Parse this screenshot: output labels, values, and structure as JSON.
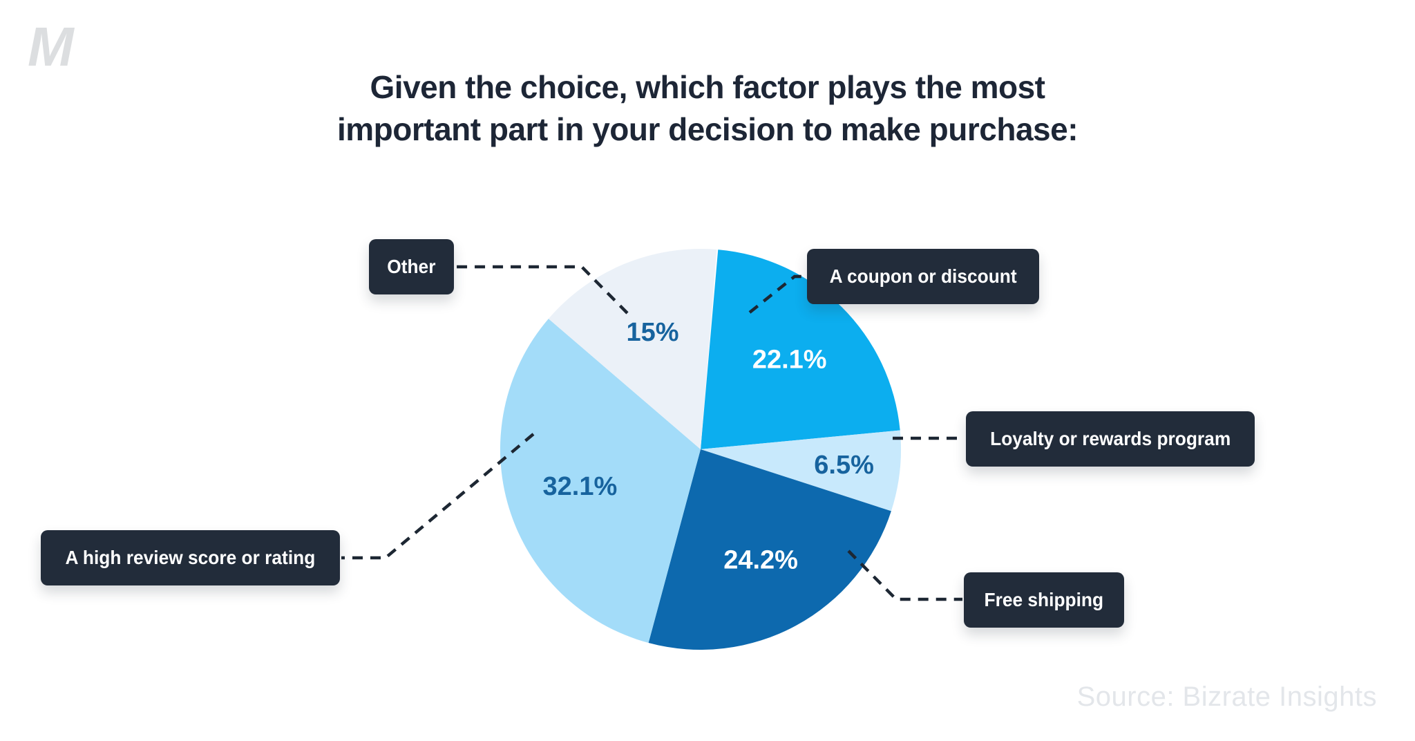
{
  "page": {
    "logo": "M",
    "title_line1": "Given the choice, which factor plays the most",
    "title_line2": "important part in your decision to make purchase:",
    "source": "Source: Bizrate Insights"
  },
  "chart_data": {
    "type": "pie",
    "title": "Given the choice, which factor plays the most important part in your decision to make purchase:",
    "source": "Source: Bizrate Insights",
    "direction": "clockwise",
    "start_angle_deg": 5,
    "legend_position": "callout-boxes-around-pie",
    "slices": [
      {
        "label": "A coupon or discount",
        "value": 22.1,
        "pct_label": "22.1%",
        "color": "#0caeef",
        "pct_color": "#ffffff"
      },
      {
        "label": "Loyalty or rewards program",
        "value": 6.5,
        "pct_label": "6.5%",
        "color": "#c8e9fc",
        "pct_color": "#17639e"
      },
      {
        "label": "Free shipping",
        "value": 24.2,
        "pct_label": "24.2%",
        "color": "#0d69ae",
        "pct_color": "#ffffff"
      },
      {
        "label": "A high review score or rating",
        "value": 32.1,
        "pct_label": "32.1%",
        "color": "#a3dcf9",
        "pct_color": "#17639e"
      },
      {
        "label": "Other",
        "value": 15,
        "pct_label": "15%",
        "color": "#ebf1f8",
        "pct_color": "#17639e"
      }
    ],
    "colors": {
      "callout_bg": "#222c3a",
      "callout_text": "#ffffff",
      "connector": "#1d2733",
      "title": "#1d2636",
      "logo": "#dcdee0",
      "source_text": "#e3e6ea"
    }
  }
}
